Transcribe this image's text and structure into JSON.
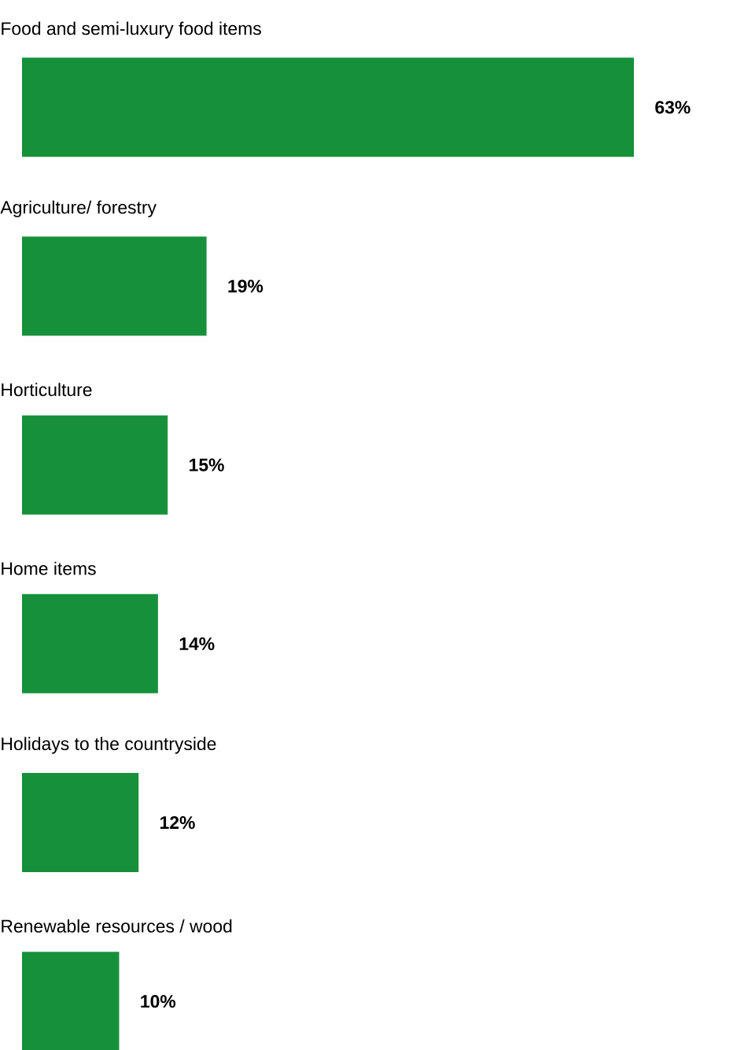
{
  "chart_data": {
    "type": "bar",
    "orientation": "horizontal",
    "categories": [
      "Food and semi-luxury food items",
      "Agriculture/ forestry",
      "Horticulture",
      "Home items",
      "Holidays to the countryside",
      "Renewable resources / wood"
    ],
    "values": [
      63,
      19,
      15,
      14,
      12,
      10
    ],
    "color": "#16913a",
    "value_labels": [
      "63%",
      "19%",
      "15%",
      "14%",
      "12%",
      "10%"
    ]
  }
}
